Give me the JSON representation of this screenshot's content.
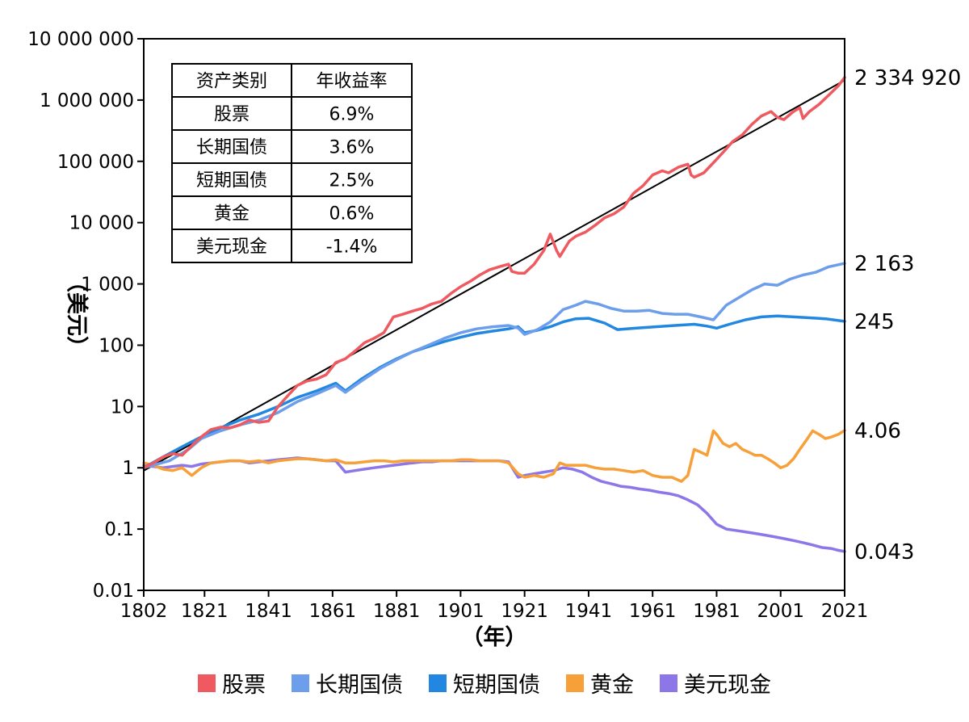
{
  "chart_data": {
    "type": "line",
    "y_scale": "log",
    "ylim": [
      0.01,
      10000000
    ],
    "xlim": [
      1802,
      2021
    ],
    "ylabel": "（美元）",
    "xlabel": "（年）",
    "y_ticks": [
      {
        "value": 0.01,
        "label": "0.01"
      },
      {
        "value": 0.1,
        "label": "0.1"
      },
      {
        "value": 1,
        "label": "1"
      },
      {
        "value": 10,
        "label": "10"
      },
      {
        "value": 100,
        "label": "100"
      },
      {
        "value": 1000,
        "label": "1 000"
      },
      {
        "value": 10000,
        "label": "10 000"
      },
      {
        "value": 100000,
        "label": "100 000"
      },
      {
        "value": 1000000,
        "label": "1 000 000"
      },
      {
        "value": 10000000,
        "label": "10 000 000"
      }
    ],
    "x_ticks": [
      {
        "value": 1802,
        "label": "1802"
      },
      {
        "value": 1821,
        "label": "1821"
      },
      {
        "value": 1841,
        "label": "1841"
      },
      {
        "value": 1861,
        "label": "1861"
      },
      {
        "value": 1881,
        "label": "1881"
      },
      {
        "value": 1901,
        "label": "1901"
      },
      {
        "value": 1921,
        "label": "1921"
      },
      {
        "value": 1941,
        "label": "1941"
      },
      {
        "value": 1961,
        "label": "1961"
      },
      {
        "value": 1981,
        "label": "1981"
      },
      {
        "value": 2001,
        "label": "2001"
      },
      {
        "value": 2021,
        "label": "2021"
      }
    ],
    "trendline": {
      "x": [
        1802,
        2021
      ],
      "y": [
        0.9,
        2100000
      ],
      "color": "#000000"
    },
    "series": [
      {
        "name": "股票",
        "color": "#ee5a5f",
        "end_label": "2 334 920",
        "x": [
          1802,
          1805,
          1808,
          1811,
          1814,
          1817,
          1820,
          1823,
          1826,
          1829,
          1832,
          1835,
          1838,
          1841,
          1844,
          1847,
          1850,
          1853,
          1856,
          1859,
          1862,
          1865,
          1868,
          1871,
          1874,
          1877,
          1880,
          1883,
          1886,
          1889,
          1892,
          1895,
          1898,
          1901,
          1904,
          1907,
          1910,
          1913,
          1916,
          1917,
          1919,
          1921,
          1924,
          1927,
          1929,
          1931,
          1932,
          1935,
          1937,
          1940,
          1943,
          1946,
          1949,
          1952,
          1955,
          1958,
          1961,
          1964,
          1966,
          1969,
          1972,
          1973,
          1974,
          1977,
          1980,
          1983,
          1986,
          1989,
          1992,
          1995,
          1998,
          2000,
          2002,
          2005,
          2007,
          2008,
          2010,
          2013,
          2016,
          2019,
          2021
        ],
        "y": [
          1,
          1.2,
          1.5,
          1.7,
          1.6,
          2.3,
          3.2,
          4.2,
          4.6,
          4.5,
          5,
          6,
          5.5,
          5.8,
          10,
          15,
          22,
          26,
          28,
          33,
          52,
          60,
          80,
          110,
          130,
          160,
          290,
          320,
          360,
          400,
          470,
          520,
          700,
          900,
          1100,
          1400,
          1700,
          1900,
          2100,
          1600,
          1500,
          1500,
          2100,
          3500,
          6500,
          3500,
          2800,
          5000,
          6000,
          7000,
          9000,
          12000,
          14000,
          18000,
          30000,
          40000,
          60000,
          70000,
          65000,
          80000,
          90000,
          60000,
          55000,
          65000,
          95000,
          140000,
          210000,
          270000,
          400000,
          550000,
          650000,
          520000,
          480000,
          650000,
          750000,
          500000,
          650000,
          850000,
          1200000,
          1700000,
          2334920
        ]
      },
      {
        "name": "长期国债",
        "color": "#6d9eeb",
        "end_label": "2 163",
        "x": [
          1802,
          1810,
          1816,
          1820,
          1826,
          1832,
          1838,
          1844,
          1850,
          1856,
          1862,
          1865,
          1870,
          1876,
          1881,
          1886,
          1891,
          1896,
          1901,
          1906,
          1911,
          1916,
          1919,
          1921,
          1925,
          1929,
          1933,
          1937,
          1940,
          1944,
          1948,
          1952,
          1956,
          1960,
          1964,
          1968,
          1972,
          1976,
          1980,
          1984,
          1988,
          1992,
          1996,
          2000,
          2004,
          2008,
          2012,
          2016,
          2021
        ],
        "y": [
          1,
          1.3,
          2,
          3,
          4,
          5,
          6,
          8,
          12,
          16,
          22,
          17,
          26,
          42,
          58,
          78,
          100,
          130,
          160,
          185,
          200,
          210,
          190,
          150,
          180,
          240,
          380,
          450,
          520,
          470,
          400,
          360,
          360,
          370,
          330,
          320,
          320,
          290,
          260,
          450,
          600,
          800,
          1000,
          950,
          1200,
          1400,
          1550,
          1900,
          2163
        ]
      },
      {
        "name": "短期国债",
        "color": "#2287e0",
        "end_label": "245",
        "x": [
          1802,
          1808,
          1814,
          1820,
          1826,
          1832,
          1838,
          1844,
          1850,
          1856,
          1862,
          1865,
          1870,
          1876,
          1881,
          1886,
          1891,
          1896,
          1901,
          1906,
          1911,
          1916,
          1919,
          1921,
          1925,
          1929,
          1933,
          1937,
          1941,
          1946,
          1950,
          1956,
          1962,
          1968,
          1974,
          1978,
          1981,
          1985,
          1990,
          1995,
          2000,
          2005,
          2010,
          2015,
          2021
        ],
        "y": [
          1,
          1.5,
          2.2,
          3.2,
          4.5,
          6,
          7.5,
          10,
          14,
          18,
          24,
          18,
          28,
          44,
          60,
          78,
          95,
          115,
          135,
          155,
          170,
          185,
          200,
          160,
          175,
          200,
          240,
          270,
          275,
          230,
          180,
          190,
          200,
          210,
          220,
          205,
          190,
          220,
          260,
          290,
          300,
          290,
          280,
          270,
          245
        ]
      },
      {
        "name": "黄金",
        "color": "#f7a03a",
        "end_label": "4.06",
        "x": [
          1802,
          1805,
          1808,
          1811,
          1814,
          1817,
          1820,
          1823,
          1826,
          1829,
          1832,
          1835,
          1838,
          1841,
          1844,
          1847,
          1850,
          1853,
          1856,
          1859,
          1862,
          1865,
          1868,
          1871,
          1874,
          1877,
          1880,
          1883,
          1886,
          1889,
          1892,
          1895,
          1898,
          1901,
          1904,
          1907,
          1910,
          1913,
          1916,
          1919,
          1921,
          1924,
          1927,
          1930,
          1932,
          1934,
          1937,
          1940,
          1943,
          1946,
          1949,
          1952,
          1955,
          1958,
          1961,
          1964,
          1967,
          1970,
          1972,
          1974,
          1976,
          1978,
          1980,
          1981,
          1983,
          1985,
          1987,
          1989,
          1991,
          1993,
          1995,
          1997,
          1999,
          2001,
          2003,
          2005,
          2007,
          2009,
          2011,
          2013,
          2015,
          2017,
          2019,
          2021
        ],
        "y": [
          1.2,
          1.1,
          0.95,
          0.9,
          1,
          0.75,
          1,
          1.2,
          1.25,
          1.3,
          1.3,
          1.25,
          1.3,
          1.2,
          1.3,
          1.35,
          1.4,
          1.4,
          1.35,
          1.3,
          1.35,
          1.2,
          1.2,
          1.25,
          1.3,
          1.3,
          1.25,
          1.3,
          1.3,
          1.3,
          1.3,
          1.3,
          1.3,
          1.35,
          1.35,
          1.3,
          1.3,
          1.3,
          1.2,
          0.8,
          0.7,
          0.75,
          0.7,
          0.8,
          1.2,
          1.1,
          1.1,
          1.1,
          1,
          0.95,
          0.95,
          0.9,
          0.85,
          0.9,
          0.75,
          0.7,
          0.7,
          0.6,
          0.75,
          2,
          1.8,
          1.6,
          4,
          3.5,
          2.5,
          2.2,
          2.5,
          2.0,
          1.8,
          1.6,
          1.6,
          1.4,
          1.2,
          1,
          1.1,
          1.4,
          2.0,
          2.8,
          4.0,
          3.5,
          3.0,
          3.2,
          3.5,
          4.06
        ]
      },
      {
        "name": "美元现金",
        "color": "#8c76e8",
        "end_label": "0.043",
        "x": [
          1802,
          1805,
          1808,
          1811,
          1814,
          1817,
          1820,
          1823,
          1826,
          1829,
          1832,
          1835,
          1838,
          1841,
          1844,
          1847,
          1850,
          1853,
          1856,
          1859,
          1862,
          1865,
          1868,
          1871,
          1874,
          1877,
          1880,
          1883,
          1886,
          1889,
          1892,
          1895,
          1898,
          1901,
          1904,
          1907,
          1910,
          1913,
          1916,
          1919,
          1921,
          1924,
          1927,
          1930,
          1933,
          1936,
          1939,
          1942,
          1945,
          1948,
          1951,
          1954,
          1957,
          1960,
          1963,
          1966,
          1969,
          1972,
          1975,
          1978,
          1981,
          1984,
          1987,
          1990,
          1993,
          1996,
          1999,
          2002,
          2005,
          2008,
          2011,
          2014,
          2017,
          2019,
          2021
        ],
        "y": [
          1.1,
          1.05,
          1,
          1.05,
          1.1,
          1.05,
          1.15,
          1.2,
          1.25,
          1.3,
          1.3,
          1.2,
          1.25,
          1.3,
          1.35,
          1.4,
          1.45,
          1.4,
          1.35,
          1.3,
          1.3,
          0.85,
          0.9,
          0.95,
          1,
          1.05,
          1.1,
          1.15,
          1.2,
          1.25,
          1.25,
          1.3,
          1.3,
          1.3,
          1.3,
          1.3,
          1.3,
          1.3,
          1.25,
          0.7,
          0.75,
          0.8,
          0.85,
          0.9,
          1,
          0.95,
          0.85,
          0.7,
          0.6,
          0.55,
          0.5,
          0.48,
          0.45,
          0.43,
          0.4,
          0.38,
          0.35,
          0.3,
          0.25,
          0.18,
          0.12,
          0.1,
          0.095,
          0.09,
          0.085,
          0.08,
          0.075,
          0.07,
          0.065,
          0.06,
          0.055,
          0.05,
          0.048,
          0.045,
          0.043
        ]
      }
    ]
  },
  "table": {
    "headers": [
      "资产类别",
      "年收益率"
    ],
    "rows": [
      [
        "股票",
        "6.9%"
      ],
      [
        "长期国债",
        "3.6%"
      ],
      [
        "短期国债",
        "2.5%"
      ],
      [
        "黄金",
        "0.6%"
      ],
      [
        "美元现金",
        "-1.4%"
      ]
    ]
  }
}
